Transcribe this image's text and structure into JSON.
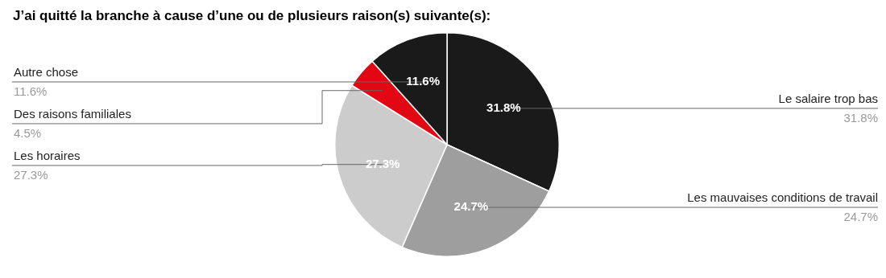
{
  "chart_data": {
    "type": "pie",
    "title": "J’ai quitté la branche à cause d’une ou de plusieurs raison(s) suivante(s):",
    "categories": [
      "Le salaire trop bas",
      "Les mauvaises conditions de travail",
      "Les horaires",
      "Des raisons familiales",
      "Autre chose"
    ],
    "values": [
      31.8,
      24.7,
      27.3,
      4.5,
      11.6
    ],
    "value_labels": [
      "31.8%",
      "24.7%",
      "27.3%",
      "4.5%",
      "11.6%"
    ],
    "colors": [
      "#1a1a1a",
      "#9e9e9e",
      "#cccccc",
      "#e30613",
      "#1a1a1a"
    ],
    "legend": false
  }
}
